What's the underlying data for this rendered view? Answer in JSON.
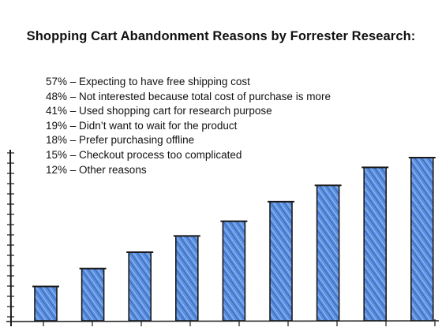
{
  "title": "Shopping Cart Abandonment Reasons by Forrester Research:",
  "reasons": [
    "57% – Expecting to have free shipping cost",
    "48% – Not interested because total cost of purchase is more",
    "41% – Used shopping cart for research purpose",
    "19% – Didn’t want to wait for the product",
    "18% – Prefer purchasing offline",
    "15% – Checkout process too complicated",
    "12% – Other reasons"
  ],
  "illustration": {
    "type": "hand-drawn bar sketch (decorative, no axis labels)",
    "bar_count": 9,
    "relative_levels": [
      0.21,
      0.32,
      0.42,
      0.52,
      0.61,
      0.73,
      0.83,
      0.94,
      1.0
    ],
    "bar_color": "#4a7fd1",
    "outline_color": "#1a1a1a"
  }
}
